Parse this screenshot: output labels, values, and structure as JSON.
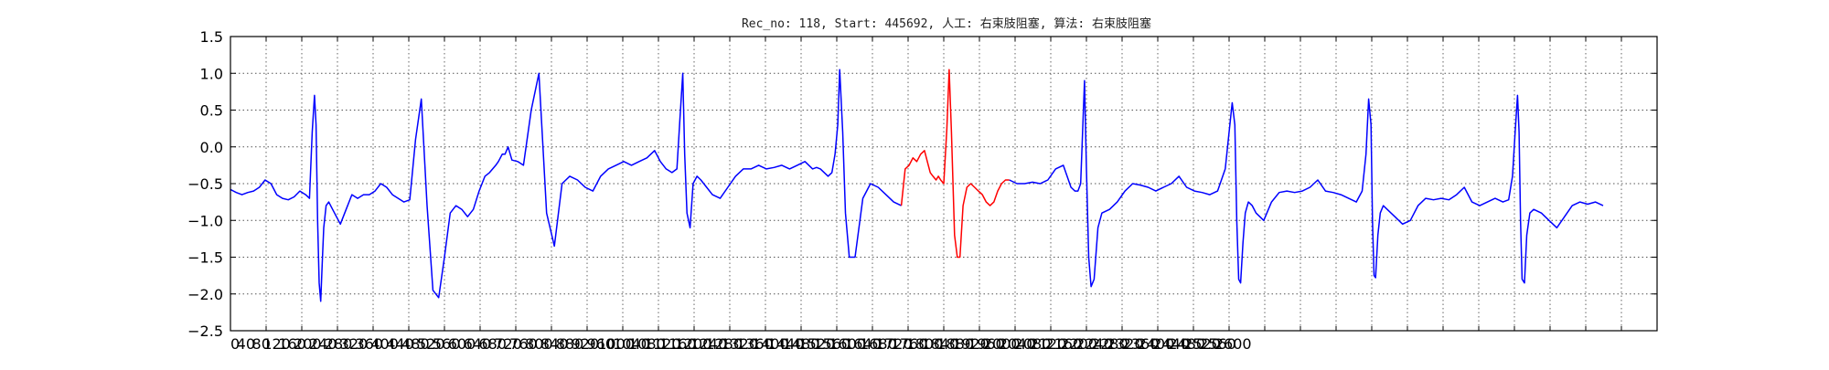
{
  "chart_data": {
    "type": "line",
    "title": "Rec_no: 118, Start: 445692, 人工: 右束肢阻塞, 算法: 右束肢阻塞",
    "xlabel": "",
    "ylabel": "",
    "xlim": [
      0,
      3700
    ],
    "ylim": [
      -2.5,
      1.5
    ],
    "x_ticks": [
      0,
      40,
      80,
      120,
      160,
      200,
      240,
      280,
      320,
      360,
      400,
      440,
      480,
      520,
      560,
      600,
      640,
      680,
      720,
      760,
      800,
      840,
      880,
      920,
      960,
      1000,
      1040,
      1080,
      1120,
      1160,
      1200,
      1240,
      1280,
      1320,
      1360,
      1400,
      1440,
      1480,
      1520,
      1560,
      1600,
      1640,
      1680,
      1720,
      1760,
      1800,
      1840,
      1880,
      1920,
      1960,
      2000,
      2040,
      2080,
      2120,
      2160,
      2200,
      2240,
      2280,
      2320,
      2360,
      2400,
      2440,
      2480,
      2520,
      2560,
      2600
    ],
    "x_tick_labels": [
      "0",
      "40",
      "80",
      "120",
      "160",
      "200",
      "240",
      "280",
      "320",
      "360",
      "400",
      "440",
      "480",
      "520",
      "560",
      "600",
      "640",
      "680",
      "720",
      "760",
      "800",
      "840",
      "880",
      "920",
      "960",
      "1000",
      "1040",
      "1080",
      "1120",
      "1160",
      "1200",
      "1240",
      "1280",
      "1320",
      "1360",
      "1400",
      "1440",
      "1480",
      "1520",
      "1560",
      "1600",
      "1640",
      "1680",
      "1720",
      "1760",
      "1800",
      "1840",
      "1880",
      "1920",
      "1960",
      "2000",
      "2040",
      "2080",
      "2120",
      "2160",
      "2200",
      "2240",
      "2280",
      "2320",
      "2360",
      "2400",
      "2440",
      "2480",
      "2520",
      "2560",
      "2600"
    ],
    "y_ticks": [
      1.5,
      1.0,
      0.5,
      0.0,
      -0.5,
      -1.0,
      -1.5,
      -2.0,
      -2.5
    ],
    "y_tick_labels": [
      "1.5",
      "1.0",
      "0.5",
      "0.0",
      "−0.5",
      "−1.0",
      "−1.5",
      "−2.0",
      "−2.5"
    ],
    "vertical_grid_count": 40,
    "grid": true,
    "series": [
      {
        "color": "#0000ff",
        "x": [
          0,
          15,
          30,
          45,
          60,
          75,
          90,
          105,
          120,
          135,
          150,
          165,
          180,
          195,
          205,
          212,
          218,
          222,
          226,
          230,
          234,
          238,
          242,
          248,
          255,
          265,
          275,
          285,
          300,
          315,
          330,
          345,
          360,
          375,
          390,
          405,
          420,
          435,
          450,
          465,
          480,
          495,
          510,
          525,
          540,
          555,
          570,
          585,
          600,
          615,
          630,
          645,
          660,
          672,
          680,
          688,
          695,
          700,
          705,
          712,
          720,
          730,
          745,
          760,
          780,
          800,
          820,
          840,
          860,
          880,
          900,
          920,
          940,
          960,
          980,
          1000,
          1020,
          1040,
          1060,
          1080,
          1100,
          1115,
          1130,
          1145,
          1158,
          1166,
          1173,
          1178,
          1184,
          1192,
          1200,
          1210,
          1220,
          1235,
          1250,
          1270,
          1290,
          1310,
          1330,
          1350,
          1370,
          1390,
          1410,
          1430,
          1450,
          1470,
          1490,
          1510,
          1520,
          1530,
          1540,
          1550,
          1560,
          1568,
          1575,
          1580,
          1588,
          1595,
          1605,
          1620,
          1640,
          1660,
          1680,
          1700,
          1720,
          1740
        ],
        "y": [
          -0.58,
          -0.62,
          -0.65,
          -0.62,
          -0.6,
          -0.55,
          -0.45,
          -0.5,
          -0.65,
          -0.7,
          -0.72,
          -0.68,
          -0.6,
          -0.65,
          -0.7,
          0.2,
          0.7,
          0.3,
          -1.0,
          -1.85,
          -2.1,
          -1.6,
          -1.1,
          -0.8,
          -0.75,
          -0.85,
          -0.95,
          -1.05,
          -0.85,
          -0.65,
          -0.7,
          -0.65,
          -0.65,
          -0.6,
          -0.5,
          -0.55,
          -0.65,
          -0.7,
          -0.75,
          -0.72,
          0.1,
          0.65,
          -0.8,
          -1.95,
          -2.05,
          -1.5,
          -0.9,
          -0.8,
          -0.85,
          -0.95,
          -0.85,
          -0.6,
          -0.4,
          -0.35,
          -0.3,
          -0.25,
          -0.2,
          -0.15,
          -0.1,
          -0.1,
          0.0,
          -0.18,
          -0.2,
          -0.25,
          0.5,
          1.0,
          -0.9,
          -1.35,
          -0.5,
          -0.4,
          -0.45,
          -0.55,
          -0.6,
          -0.4,
          -0.3,
          -0.25,
          -0.2,
          -0.25,
          -0.2,
          -0.15,
          -0.05,
          -0.2,
          -0.3,
          -0.35,
          -0.3,
          0.4,
          1.0,
          -0.1,
          -0.9,
          -1.1,
          -0.5,
          -0.4,
          -0.45,
          -0.55,
          -0.65,
          -0.7,
          -0.55,
          -0.4,
          -0.3,
          -0.3,
          -0.25,
          -0.3,
          -0.28,
          -0.25,
          -0.3,
          -0.25,
          -0.2,
          -0.3,
          -0.28,
          -0.3,
          -0.35,
          -0.4,
          -0.35,
          -0.1,
          0.3,
          1.05,
          0.2,
          -0.9,
          -1.5,
          -1.5,
          -0.7,
          -0.5,
          -0.55,
          -0.65,
          -0.75,
          -0.8
        ]
      },
      {
        "color": "#ff0000",
        "x": [
          1740,
          1750,
          1760,
          1770,
          1780,
          1790,
          1800,
          1810,
          1815,
          1822,
          1830,
          1836,
          1842,
          1850,
          1858,
          1864,
          1870,
          1878,
          1885,
          1892,
          1900,
          1910,
          1920,
          1930,
          1940,
          1950,
          1960,
          1970,
          1980,
          1990,
          2000,
          2010,
          2020
        ],
        "y": [
          -0.8,
          -0.3,
          -0.25,
          -0.15,
          -0.2,
          -0.1,
          -0.05,
          -0.25,
          -0.35,
          -0.4,
          -0.45,
          -0.4,
          -0.45,
          -0.5,
          0.25,
          1.05,
          0.2,
          -1.2,
          -1.5,
          -1.5,
          -0.8,
          -0.55,
          -0.5,
          -0.55,
          -0.6,
          -0.65,
          -0.75,
          -0.8,
          -0.75,
          -0.6,
          -0.5,
          -0.45,
          -0.45
        ]
      },
      {
        "color": "#0000ff",
        "x": [
          2020,
          2040,
          2060,
          2080,
          2100,
          2120,
          2140,
          2160,
          2180,
          2190,
          2198,
          2205,
          2210,
          2215,
          2220,
          2226,
          2232,
          2240,
          2250,
          2260,
          2280,
          2300,
          2320,
          2340,
          2360,
          2380,
          2400,
          2420,
          2440,
          2460,
          2480,
          2500,
          2520,
          2540,
          2560,
          2580,
          2590,
          2598,
          2605,
          2610,
          2615,
          2620,
          2626,
          2632,
          2640,
          2650,
          2660,
          2680,
          2700,
          2720,
          2740,
          2760,
          2780,
          2800,
          2820,
          2840,
          2860,
          2880,
          2900,
          2920,
          2935,
          2945,
          2952,
          2958,
          2962,
          2966,
          2970,
          2976,
          2982,
          2990,
          3000,
          3020,
          3040,
          3060,
          3080,
          3100,
          3120,
          3140,
          3160,
          3180,
          3200,
          3220,
          3240,
          3260,
          3280,
          3300,
          3315,
          3325,
          3332,
          3338,
          3342,
          3346,
          3350,
          3356,
          3362,
          3370,
          3380,
          3400,
          3420,
          3440,
          3460,
          3480,
          3500,
          3520,
          3540,
          3560
        ],
        "y": [
          -0.45,
          -0.5,
          -0.5,
          -0.48,
          -0.5,
          -0.45,
          -0.3,
          -0.25,
          -0.55,
          -0.6,
          -0.6,
          -0.5,
          0.2,
          0.9,
          -0.3,
          -1.5,
          -1.9,
          -1.8,
          -1.1,
          -0.9,
          -0.85,
          -0.75,
          -0.6,
          -0.5,
          -0.52,
          -0.55,
          -0.6,
          -0.55,
          -0.5,
          -0.4,
          -0.55,
          -0.6,
          -0.62,
          -0.65,
          -0.6,
          -0.3,
          0.2,
          0.6,
          0.3,
          -1.0,
          -1.8,
          -1.85,
          -1.3,
          -0.9,
          -0.75,
          -0.8,
          -0.9,
          -1.0,
          -0.75,
          -0.62,
          -0.6,
          -0.62,
          -0.6,
          -0.55,
          -0.45,
          -0.6,
          -0.62,
          -0.65,
          -0.7,
          -0.75,
          -0.6,
          -0.1,
          0.65,
          0.3,
          -1.0,
          -1.75,
          -1.78,
          -1.2,
          -0.9,
          -0.8,
          -0.85,
          -0.95,
          -1.05,
          -1.0,
          -0.8,
          -0.7,
          -0.72,
          -0.7,
          -0.72,
          -0.65,
          -0.55,
          -0.75,
          -0.8,
          -0.75,
          -0.7,
          -0.75,
          -0.72,
          -0.4,
          0.2,
          0.7,
          0.2,
          -1.0,
          -1.8,
          -1.85,
          -1.2,
          -0.9,
          -0.85,
          -0.9,
          -1.0,
          -1.1,
          -0.95,
          -0.8,
          -0.75,
          -0.78,
          -0.75,
          -0.8
        ]
      }
    ]
  }
}
